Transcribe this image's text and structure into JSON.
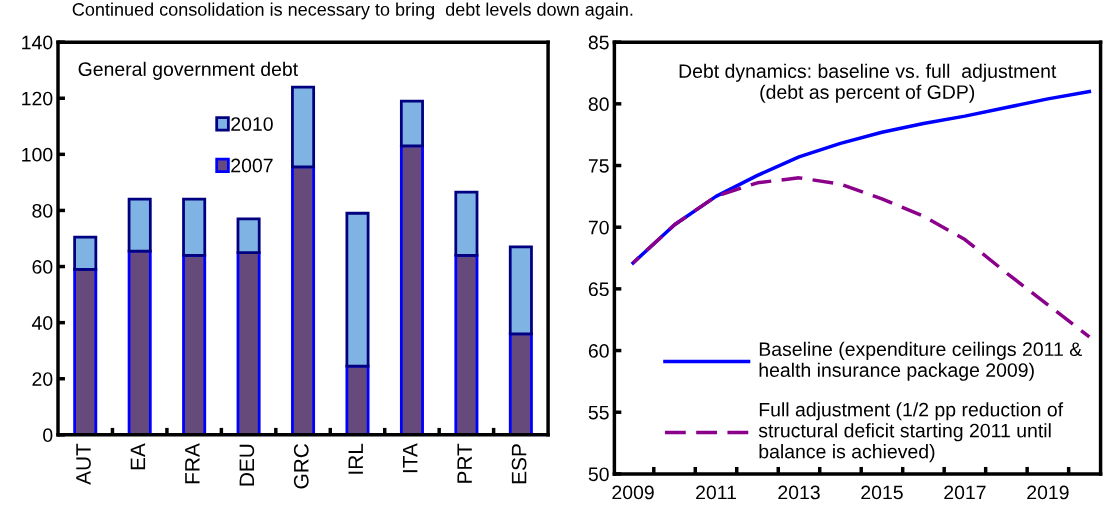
{
  "chart_data": [
    {
      "type": "bar",
      "title": "General government debt",
      "stacked": true,
      "legend": "top",
      "annotations": [
        "Continued consolidation is necessary to bring  debt levels down again."
      ],
      "categories": [
        "AUT",
        "EA",
        "FRA",
        "DEU",
        "GRC",
        "IRL",
        "ITA",
        "PRT",
        "ESP"
      ],
      "ylim": [
        0,
        140
      ],
      "yticks": [
        0,
        20,
        40,
        60,
        80,
        100,
        120,
        140
      ],
      "grid": false,
      "series": [
        {
          "name": "2007",
          "color": "#664a7c",
          "values": [
            59,
            65.5,
            64,
            65,
            95.5,
            24.5,
            103,
            64,
            36
          ]
        },
        {
          "name": "2010",
          "color": "#7eb3e3",
          "values": [
            11.5,
            18.5,
            20,
            12,
            28.5,
            54.5,
            16,
            22.5,
            31
          ]
        }
      ]
    },
    {
      "type": "line",
      "title": "Debt dynamics: baseline vs. full  adjustment\n(debt as percent of GDP)",
      "legend": "bottom left",
      "categories": [
        "2009",
        null,
        "2011",
        null,
        "2013",
        null,
        "2015",
        null,
        "2017",
        null,
        "2019",
        null
      ],
      "ylim": [
        50,
        85
      ],
      "yticks": [
        50,
        55,
        60,
        65,
        70,
        75,
        80,
        85
      ],
      "grid": false,
      "series": [
        {
          "name": "Baseline (expenditure ceilings 2011 &\nhealth insurance package 2009)",
          "color": "#0000ff",
          "line_style": "solid",
          "values": [
            67.1,
            70.2,
            72.5,
            74.2,
            75.7,
            76.8,
            77.7,
            78.4,
            79.0,
            79.7,
            80.4,
            81.0
          ]
        },
        {
          "name": "Full adjustment (1/2 pp reduction of\nstructural deficit starting 2011 until\nbalance is achieved)",
          "color": "#8b008b",
          "line_style": "dashed",
          "values": [
            67.1,
            70.2,
            72.5,
            73.6,
            74.0,
            73.5,
            72.3,
            70.9,
            69.0,
            66.3,
            63.7,
            61.1
          ]
        }
      ]
    }
  ]
}
